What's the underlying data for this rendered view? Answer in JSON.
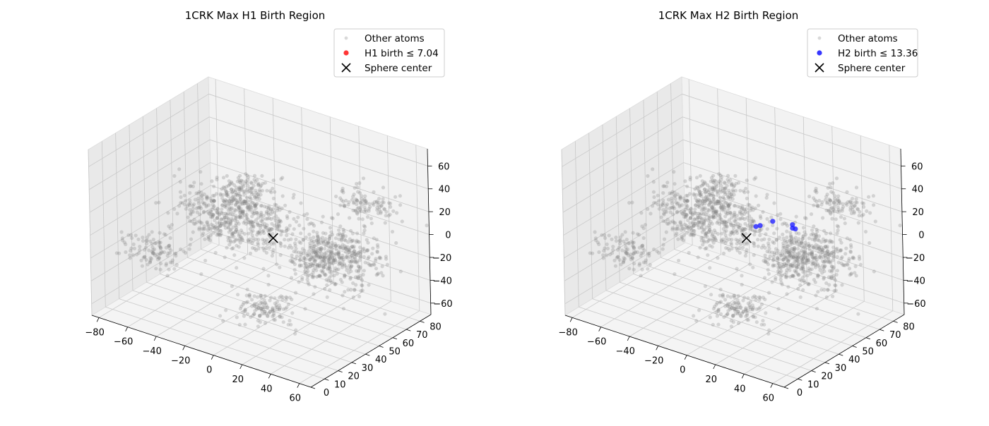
{
  "chart_data": [
    {
      "type": "scatter",
      "projection": "3d",
      "title": "1CRK Max H1 Birth Region",
      "xlabel": "",
      "ylabel": "",
      "zlabel": "",
      "xlim": [
        -85,
        68
      ],
      "ylim": [
        0,
        88
      ],
      "zlim": [
        -70,
        75
      ],
      "x_ticks": [
        "−80",
        "−60",
        "−40",
        "−20",
        "0",
        "20",
        "40",
        "60"
      ],
      "y_ticks": [
        "0",
        "10",
        "20",
        "30",
        "40",
        "50",
        "60",
        "70",
        "80"
      ],
      "z_ticks": [
        "−60",
        "−40",
        "−20",
        "0",
        "20",
        "40",
        "60"
      ],
      "grid": true,
      "legend_position": "top-right",
      "series": [
        {
          "name": "Other atoms",
          "color": "#808080",
          "marker": "point",
          "clusters": [
            {
              "center": [
                -20,
                40,
                15
              ],
              "spread": [
                17,
                11,
                11
              ],
              "count": 600
            },
            {
              "center": [
                25,
                62,
                -18
              ],
              "spread": [
                14,
                9,
                11
              ],
              "count": 520
            },
            {
              "center": [
                -58,
                18,
                -15
              ],
              "spread": [
                11,
                5,
                6
              ],
              "count": 110
            },
            {
              "center": [
                40,
                72,
                25
              ],
              "spread": [
                10,
                6,
                6
              ],
              "count": 110
            },
            {
              "center": [
                5,
                35,
                -52
              ],
              "spread": [
                9,
                7,
                6
              ],
              "count": 130
            },
            {
              "center": [
                -5,
                30,
                50
              ],
              "spread": [
                6,
                5,
                8
              ],
              "count": 70
            }
          ]
        },
        {
          "name": "H1 birth ≤ 7.04",
          "color": "#ff2020",
          "marker": "circle",
          "points": []
        },
        {
          "name": "Sphere center",
          "color": "#000000",
          "marker": "x",
          "points": [
            [
              0,
              45,
              0
            ]
          ]
        }
      ]
    },
    {
      "type": "scatter",
      "projection": "3d",
      "title": "1CRK Max H2 Birth Region",
      "xlabel": "",
      "ylabel": "",
      "zlabel": "",
      "xlim": [
        -85,
        68
      ],
      "ylim": [
        0,
        88
      ],
      "zlim": [
        -70,
        75
      ],
      "x_ticks": [
        "−80",
        "−60",
        "−40",
        "−20",
        "0",
        "20",
        "40",
        "60"
      ],
      "y_ticks": [
        "0",
        "10",
        "20",
        "30",
        "40",
        "50",
        "60",
        "70",
        "80"
      ],
      "z_ticks": [
        "−60",
        "−40",
        "−20",
        "0",
        "20",
        "40",
        "60"
      ],
      "grid": true,
      "legend_position": "top-right",
      "series": [
        {
          "name": "Other atoms",
          "color": "#808080",
          "marker": "point",
          "clusters": [
            {
              "center": [
                -20,
                40,
                15
              ],
              "spread": [
                17,
                11,
                11
              ],
              "count": 600
            },
            {
              "center": [
                25,
                62,
                -18
              ],
              "spread": [
                14,
                9,
                11
              ],
              "count": 520
            },
            {
              "center": [
                -58,
                18,
                -15
              ],
              "spread": [
                11,
                5,
                6
              ],
              "count": 110
            },
            {
              "center": [
                40,
                72,
                25
              ],
              "spread": [
                10,
                6,
                6
              ],
              "count": 110
            },
            {
              "center": [
                5,
                35,
                -52
              ],
              "spread": [
                9,
                7,
                6
              ],
              "count": 130
            },
            {
              "center": [
                -5,
                30,
                50
              ],
              "spread": [
                6,
                5,
                8
              ],
              "count": 70
            }
          ]
        },
        {
          "name": "H2 birth ≤ 13.36",
          "color": "#2020ff",
          "marker": "circle",
          "points": [
            [
              0,
              52,
              5
            ],
            [
              2,
              53,
              6
            ],
            [
              8,
              56,
              10
            ],
            [
              16,
              62,
              6
            ],
            [
              16,
              62,
              3
            ],
            [
              17,
              63,
              2
            ]
          ]
        },
        {
          "name": "Sphere center",
          "color": "#000000",
          "marker": "x",
          "points": [
            [
              0,
              45,
              0
            ]
          ]
        }
      ]
    }
  ]
}
